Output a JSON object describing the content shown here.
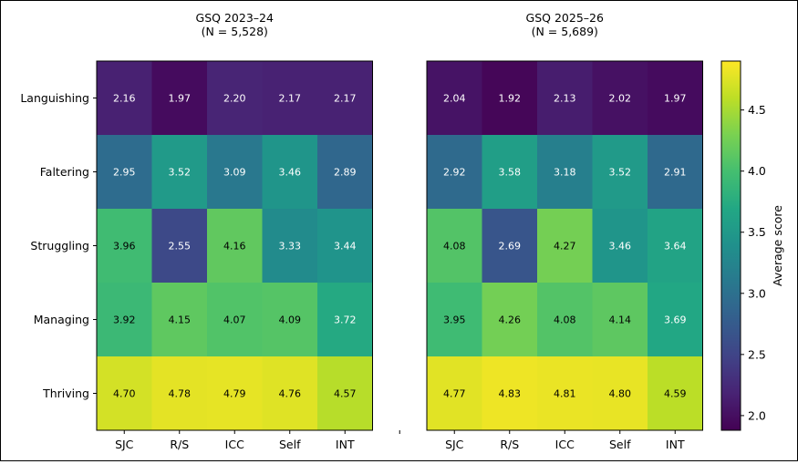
{
  "chart_data": {
    "type": "heatmap",
    "rows": [
      "Languishing",
      "Faltering",
      "Struggling",
      "Managing",
      "Thriving"
    ],
    "columns": [
      "SJC",
      "R/S",
      "ICC",
      "Self",
      "INT"
    ],
    "panels": [
      {
        "title": "GSQ 2023–24",
        "subtitle": "(N = 5,528)",
        "values": [
          [
            2.16,
            1.97,
            2.2,
            2.17,
            2.17
          ],
          [
            2.95,
            3.52,
            3.09,
            3.46,
            2.89
          ],
          [
            3.96,
            2.55,
            4.16,
            3.33,
            3.44
          ],
          [
            3.92,
            4.15,
            4.07,
            4.09,
            3.72
          ],
          [
            4.7,
            4.78,
            4.79,
            4.76,
            4.57
          ]
        ]
      },
      {
        "title": "GSQ 2025–26",
        "subtitle": "(N = 5,689)",
        "values": [
          [
            2.04,
            1.92,
            2.13,
            2.02,
            1.97
          ],
          [
            2.92,
            3.58,
            3.18,
            3.52,
            2.91
          ],
          [
            4.08,
            2.69,
            4.27,
            3.46,
            3.64
          ],
          [
            3.95,
            4.26,
            4.08,
            4.14,
            3.69
          ],
          [
            4.77,
            4.83,
            4.81,
            4.8,
            4.59
          ]
        ]
      }
    ],
    "colorbar": {
      "label": "Average score",
      "min": 1.88,
      "max": 4.9,
      "ticks": [
        2.0,
        2.5,
        3.0,
        3.5,
        4.0,
        4.5
      ],
      "tick_labels": [
        "2.0",
        "2.5",
        "3.0",
        "3.5",
        "4.0",
        "4.5"
      ],
      "colormap": "viridis"
    }
  }
}
